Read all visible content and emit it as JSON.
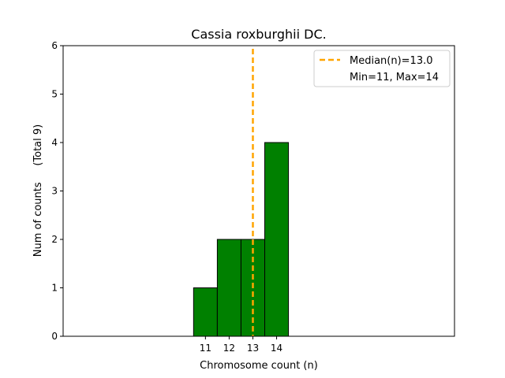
{
  "chart_data": {
    "type": "bar",
    "title": "Cassia roxburghii DC.",
    "xlabel": "Chromosome count (n)",
    "ylabel": "Num of counts     (Total 9)",
    "x": [
      11,
      12,
      13,
      14
    ],
    "values": [
      1,
      2,
      2,
      4
    ],
    "xlim": [
      5,
      21.5
    ],
    "ylim": [
      0,
      6
    ],
    "yticks": [
      "0",
      "1",
      "2",
      "3",
      "4",
      "5",
      "6"
    ],
    "xticks": [
      "11",
      "12",
      "13",
      "14"
    ],
    "median": 13.0,
    "baseline_range": [
      5,
      16.8
    ],
    "legend": {
      "placement": "top-right",
      "entries": [
        "Median(n)=13.0",
        "Min=11, Max=14"
      ]
    },
    "colors": {
      "bar_fill": "#008000",
      "bar_edge": "#000000",
      "median_line": "#FFA500"
    }
  }
}
